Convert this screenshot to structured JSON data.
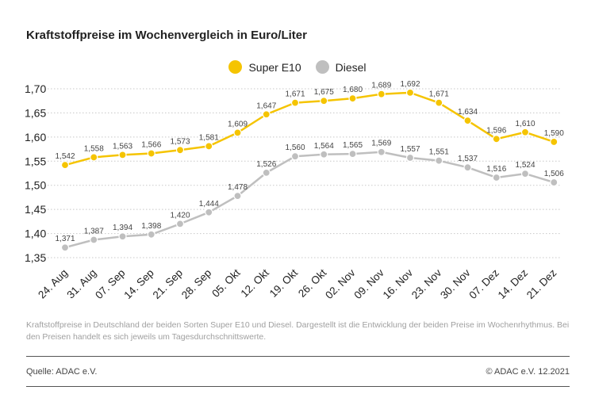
{
  "title": "Kraftstoffpreise im Wochenvergleich in Euro/Liter",
  "legend": [
    {
      "name": "Super E10",
      "color": "#f5c400"
    },
    {
      "name": "Diesel",
      "color": "#bfbfbf"
    }
  ],
  "caption": "Kraftstoffpreise in Deutschland der beiden Sorten Super E10 und Diesel. Dargestellt ist die Entwicklung der beiden Preise im Wochenrhythmus. Bei den Preisen handelt es sich jeweils um Tagesdurchschnittswerte.",
  "source": "Quelle: ADAC e.V.",
  "copyright": "© ADAC e.V. 12.2021",
  "chart_data": {
    "type": "line",
    "categories": [
      "24. Aug",
      "31. Aug",
      "07. Sep",
      "14. Sep",
      "21. Sep",
      "28. Sep",
      "05. Okt",
      "12. Okt",
      "19. Okt",
      "26. Okt",
      "02. Nov",
      "09. Nov",
      "16. Nov",
      "23. Nov",
      "30. Nov",
      "07. Dez",
      "14. Dez",
      "21. Dez"
    ],
    "series": [
      {
        "name": "Super E10",
        "color": "#f5c400",
        "values": [
          1.542,
          1.558,
          1.563,
          1.566,
          1.573,
          1.581,
          1.609,
          1.647,
          1.671,
          1.675,
          1.68,
          1.689,
          1.692,
          1.671,
          1.634,
          1.596,
          1.61,
          1.59
        ],
        "labels": [
          "1,542",
          "1,558",
          "1,563",
          "1,566",
          "1,573",
          "1,581",
          "1,609",
          "1,647",
          "1,671",
          "1,675",
          "1,680",
          "1,689",
          "1,692",
          "1,671",
          "1,634",
          "1,596",
          "1,610",
          "1,590"
        ]
      },
      {
        "name": "Diesel",
        "color": "#bfbfbf",
        "values": [
          1.371,
          1.387,
          1.394,
          1.398,
          1.42,
          1.444,
          1.478,
          1.526,
          1.56,
          1.564,
          1.565,
          1.569,
          1.557,
          1.551,
          1.537,
          1.516,
          1.524,
          1.506
        ],
        "labels": [
          "1,371",
          "1,387",
          "1,394",
          "1,398",
          "1,420",
          "1,444",
          "1,478",
          "1,526",
          "1,560",
          "1,564",
          "1,565",
          "1,569",
          "1,557",
          "1,551",
          "1,537",
          "1,516",
          "1,524",
          "1,506"
        ]
      }
    ],
    "yticks": [
      1.35,
      1.4,
      1.45,
      1.5,
      1.55,
      1.6,
      1.65,
      1.7
    ],
    "ytick_labels": [
      "1,35",
      "1,40",
      "1,45",
      "1,50",
      "1,55",
      "1,60",
      "1,65",
      "1,70"
    ],
    "ylim": [
      1.35,
      1.7
    ],
    "grid": "dotted horizontal",
    "legend_position": "top-center"
  }
}
